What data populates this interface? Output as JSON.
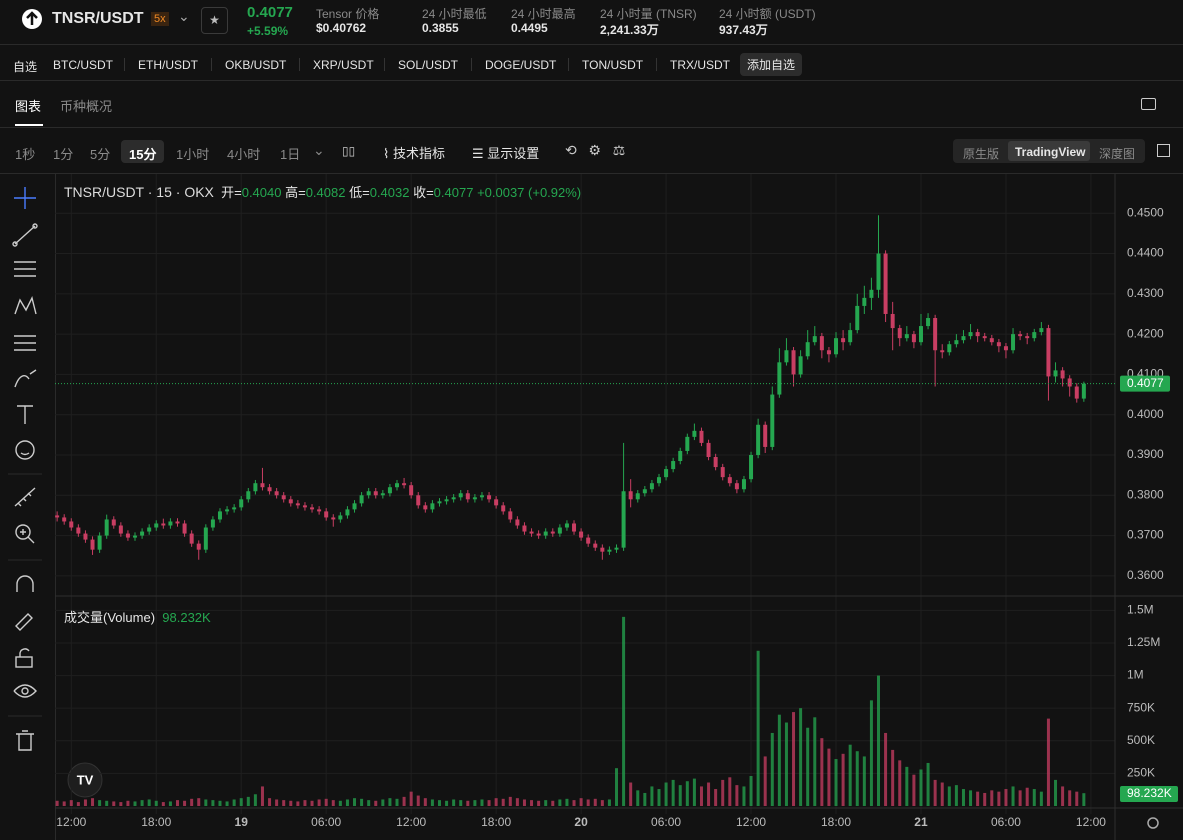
{
  "header": {
    "pair": "TNSR/USDT",
    "leverage": "5x",
    "price": "0.4077",
    "change": "+5.59%",
    "stats": [
      {
        "label": "Tensor 价格",
        "value": "$0.40762"
      },
      {
        "label": "24 小时最低",
        "value": "0.3855"
      },
      {
        "label": "24 小时最高",
        "value": "0.4495"
      },
      {
        "label": "24 小时量 (TNSR)",
        "value": "2,241.33万"
      },
      {
        "label": "24 小时额 (USDT)",
        "value": "937.43万"
      }
    ]
  },
  "watchlist": {
    "label": "自选",
    "pairs": [
      "BTC/USDT",
      "ETH/USDT",
      "OKB/USDT",
      "XRP/USDT",
      "SOL/USDT",
      "DOGE/USDT",
      "TON/USDT",
      "TRX/USDT"
    ],
    "add": "添加自选"
  },
  "tabs": [
    "图表",
    "币种概况"
  ],
  "intervals": [
    "1秒",
    "1分",
    "5分",
    "15分",
    "1小时",
    "4小时",
    "1日"
  ],
  "tools": [
    "技术指标",
    "显示设置"
  ],
  "views": [
    "原生版",
    "TradingView",
    "深度图"
  ],
  "chart_data": {
    "type": "candlestick",
    "grid": true,
    "up_color": "#25a750",
    "down_color": "#c93e63",
    "legend": {
      "title": "TNSR/USDT · 15 · OKX",
      "items": [
        {
          "label": "开=",
          "value": "0.4040"
        },
        {
          "label": "高=",
          "value": "0.4082"
        },
        {
          "label": "低=",
          "value": "0.4032"
        },
        {
          "label": "收=",
          "value": "0.4077"
        }
      ],
      "change": "+0.0037 (+0.92%)"
    },
    "xlim": [
      -0.3,
      149.4
    ],
    "xticks": [
      {
        "value": 2,
        "label": "12:00"
      },
      {
        "value": 14,
        "label": "18:00"
      },
      {
        "value": 26,
        "label": "19"
      },
      {
        "value": 38,
        "label": "06:00"
      },
      {
        "value": 50,
        "label": "12:00"
      },
      {
        "value": 62,
        "label": "18:00"
      },
      {
        "value": 74,
        "label": "20"
      },
      {
        "value": 86,
        "label": "06:00"
      },
      {
        "value": 98,
        "label": "12:00"
      },
      {
        "value": 110,
        "label": "18:00"
      },
      {
        "value": 122,
        "label": "21"
      },
      {
        "value": 134,
        "label": "06:00"
      },
      {
        "value": 146,
        "label": "12:00"
      }
    ],
    "ylim": [
      0.355,
      0.459
    ],
    "yticks": [
      {
        "value": 0.36,
        "label": "0.3600"
      },
      {
        "value": 0.37,
        "label": "0.3700"
      },
      {
        "value": 0.38,
        "label": "0.3800"
      },
      {
        "value": 0.39,
        "label": "0.3900"
      },
      {
        "value": 0.4,
        "label": "0.4000"
      },
      {
        "value": 0.41,
        "label": "0.4100"
      },
      {
        "value": 0.42,
        "label": "0.4200"
      },
      {
        "value": 0.43,
        "label": "0.4300"
      },
      {
        "value": 0.44,
        "label": "0.4400"
      },
      {
        "value": 0.45,
        "label": "0.4500"
      }
    ],
    "ohlc": [
      [
        0.375,
        0.376,
        0.3735,
        0.3745
      ],
      [
        0.3745,
        0.3753,
        0.3727,
        0.3735
      ],
      [
        0.3735,
        0.3743,
        0.3712,
        0.372
      ],
      [
        0.372,
        0.3728,
        0.3697,
        0.3705
      ],
      [
        0.3705,
        0.3713,
        0.3682,
        0.369
      ],
      [
        0.369,
        0.3698,
        0.3652,
        0.3665
      ],
      [
        0.3665,
        0.3708,
        0.3657,
        0.37
      ],
      [
        0.37,
        0.3752,
        0.3692,
        0.374
      ],
      [
        0.374,
        0.3748,
        0.3717,
        0.3725
      ],
      [
        0.3725,
        0.3733,
        0.3697,
        0.3705
      ],
      [
        0.3705,
        0.3713,
        0.3687,
        0.3695
      ],
      [
        0.3695,
        0.3708,
        0.3687,
        0.37
      ],
      [
        0.37,
        0.3718,
        0.3692,
        0.371
      ],
      [
        0.371,
        0.3728,
        0.3702,
        0.372
      ],
      [
        0.372,
        0.3738,
        0.3712,
        0.373
      ],
      [
        0.373,
        0.3742,
        0.3717,
        0.3725
      ],
      [
        0.3725,
        0.3743,
        0.3717,
        0.3735
      ],
      [
        0.3735,
        0.3743,
        0.3722,
        0.373
      ],
      [
        0.373,
        0.3738,
        0.3697,
        0.3705
      ],
      [
        0.3705,
        0.3713,
        0.3672,
        0.368
      ],
      [
        0.368,
        0.3688,
        0.364,
        0.3665
      ],
      [
        0.3665,
        0.3728,
        0.3657,
        0.372
      ],
      [
        0.372,
        0.3748,
        0.3712,
        0.374
      ],
      [
        0.374,
        0.3768,
        0.3732,
        0.376
      ],
      [
        0.376,
        0.3773,
        0.3752,
        0.3765
      ],
      [
        0.3765,
        0.3778,
        0.3757,
        0.377
      ],
      [
        0.377,
        0.3798,
        0.3762,
        0.379
      ],
      [
        0.379,
        0.3818,
        0.3782,
        0.381
      ],
      [
        0.381,
        0.3838,
        0.3802,
        0.383
      ],
      [
        0.383,
        0.3868,
        0.3812,
        0.382
      ],
      [
        0.382,
        0.3828,
        0.3802,
        0.381
      ],
      [
        0.381,
        0.3818,
        0.3792,
        0.38
      ],
      [
        0.38,
        0.3808,
        0.3782,
        0.379
      ],
      [
        0.379,
        0.3798,
        0.3772,
        0.378
      ],
      [
        0.378,
        0.3788,
        0.3767,
        0.3775
      ],
      [
        0.3775,
        0.3783,
        0.3762,
        0.377
      ],
      [
        0.377,
        0.3778,
        0.3757,
        0.3765
      ],
      [
        0.3765,
        0.3773,
        0.3752,
        0.376
      ],
      [
        0.376,
        0.3768,
        0.3737,
        0.3745
      ],
      [
        0.3745,
        0.3753,
        0.3722,
        0.374
      ],
      [
        0.374,
        0.3758,
        0.3732,
        0.375
      ],
      [
        0.375,
        0.3773,
        0.3742,
        0.3765
      ],
      [
        0.3765,
        0.3788,
        0.3757,
        0.378
      ],
      [
        0.378,
        0.3808,
        0.3772,
        0.38
      ],
      [
        0.38,
        0.3818,
        0.3792,
        0.381
      ],
      [
        0.381,
        0.3818,
        0.3792,
        0.38
      ],
      [
        0.38,
        0.3813,
        0.3792,
        0.3805
      ],
      [
        0.3805,
        0.3828,
        0.3797,
        0.382
      ],
      [
        0.382,
        0.3838,
        0.3812,
        0.383
      ],
      [
        0.383,
        0.3843,
        0.3817,
        0.3825
      ],
      [
        0.3825,
        0.3833,
        0.3792,
        0.38
      ],
      [
        0.38,
        0.3808,
        0.3767,
        0.3775
      ],
      [
        0.3775,
        0.3783,
        0.3757,
        0.3765
      ],
      [
        0.3765,
        0.3788,
        0.3757,
        0.378
      ],
      [
        0.378,
        0.3793,
        0.3772,
        0.3785
      ],
      [
        0.3785,
        0.3798,
        0.3777,
        0.379
      ],
      [
        0.379,
        0.3803,
        0.3782,
        0.3795
      ],
      [
        0.3795,
        0.3813,
        0.3787,
        0.3805
      ],
      [
        0.3805,
        0.3813,
        0.3782,
        0.379
      ],
      [
        0.379,
        0.3803,
        0.3782,
        0.3795
      ],
      [
        0.3795,
        0.3808,
        0.3787,
        0.38
      ],
      [
        0.38,
        0.3808,
        0.3782,
        0.379
      ],
      [
        0.379,
        0.3798,
        0.3767,
        0.3775
      ],
      [
        0.3775,
        0.3783,
        0.3752,
        0.376
      ],
      [
        0.376,
        0.3768,
        0.3732,
        0.374
      ],
      [
        0.374,
        0.3748,
        0.3717,
        0.3725
      ],
      [
        0.3725,
        0.3733,
        0.3702,
        0.371
      ],
      [
        0.371,
        0.3718,
        0.3697,
        0.3705
      ],
      [
        0.3705,
        0.3713,
        0.3692,
        0.37
      ],
      [
        0.37,
        0.3718,
        0.3692,
        0.371
      ],
      [
        0.371,
        0.3718,
        0.3697,
        0.3705
      ],
      [
        0.3705,
        0.3728,
        0.3697,
        0.372
      ],
      [
        0.372,
        0.3738,
        0.3712,
        0.373
      ],
      [
        0.373,
        0.3738,
        0.3702,
        0.371
      ],
      [
        0.371,
        0.3718,
        0.3687,
        0.3695
      ],
      [
        0.3695,
        0.3703,
        0.3672,
        0.368
      ],
      [
        0.368,
        0.3688,
        0.3662,
        0.367
      ],
      [
        0.367,
        0.3678,
        0.364,
        0.366
      ],
      [
        0.366,
        0.3673,
        0.3652,
        0.3665
      ],
      [
        0.3665,
        0.3678,
        0.3657,
        0.367
      ],
      [
        0.367,
        0.393,
        0.3662,
        0.381
      ],
      [
        0.381,
        0.384,
        0.377,
        0.379
      ],
      [
        0.379,
        0.3813,
        0.3782,
        0.3805
      ],
      [
        0.3805,
        0.3823,
        0.3797,
        0.3815
      ],
      [
        0.3815,
        0.3838,
        0.3807,
        0.383
      ],
      [
        0.383,
        0.3853,
        0.3822,
        0.3845
      ],
      [
        0.3845,
        0.3873,
        0.3837,
        0.3865
      ],
      [
        0.3865,
        0.3893,
        0.3857,
        0.3885
      ],
      [
        0.3885,
        0.3918,
        0.3877,
        0.391
      ],
      [
        0.391,
        0.3953,
        0.3902,
        0.3945
      ],
      [
        0.3945,
        0.3978,
        0.3937,
        0.396
      ],
      [
        0.396,
        0.3968,
        0.3922,
        0.393
      ],
      [
        0.393,
        0.3938,
        0.3887,
        0.3895
      ],
      [
        0.3895,
        0.3903,
        0.3862,
        0.387
      ],
      [
        0.387,
        0.3878,
        0.3837,
        0.3845
      ],
      [
        0.3845,
        0.3853,
        0.3822,
        0.383
      ],
      [
        0.383,
        0.3838,
        0.3805,
        0.3815
      ],
      [
        0.3815,
        0.3848,
        0.3807,
        0.384
      ],
      [
        0.384,
        0.3908,
        0.3832,
        0.39
      ],
      [
        0.39,
        0.399,
        0.3892,
        0.3975
      ],
      [
        0.3975,
        0.3983,
        0.3905,
        0.392
      ],
      [
        0.392,
        0.407,
        0.3912,
        0.405
      ],
      [
        0.405,
        0.4165,
        0.4042,
        0.413
      ],
      [
        0.413,
        0.419,
        0.4122,
        0.416
      ],
      [
        0.416,
        0.4168,
        0.407,
        0.41
      ],
      [
        0.41,
        0.416,
        0.4092,
        0.4145
      ],
      [
        0.4145,
        0.421,
        0.4137,
        0.418
      ],
      [
        0.418,
        0.422,
        0.4172,
        0.4195
      ],
      [
        0.4195,
        0.4203,
        0.414,
        0.416
      ],
      [
        0.416,
        0.4168,
        0.413,
        0.415
      ],
      [
        0.415,
        0.4205,
        0.4142,
        0.419
      ],
      [
        0.419,
        0.421,
        0.416,
        0.418
      ],
      [
        0.418,
        0.4228,
        0.4172,
        0.421
      ],
      [
        0.421,
        0.43,
        0.4202,
        0.427
      ],
      [
        0.427,
        0.432,
        0.425,
        0.429
      ],
      [
        0.429,
        0.434,
        0.426,
        0.431
      ],
      [
        0.431,
        0.4495,
        0.429,
        0.44
      ],
      [
        0.44,
        0.4408,
        0.423,
        0.425
      ],
      [
        0.425,
        0.428,
        0.416,
        0.4215
      ],
      [
        0.4215,
        0.4223,
        0.417,
        0.419
      ],
      [
        0.419,
        0.422,
        0.4182,
        0.42
      ],
      [
        0.42,
        0.4208,
        0.4165,
        0.418
      ],
      [
        0.418,
        0.425,
        0.4172,
        0.422
      ],
      [
        0.422,
        0.4252,
        0.4212,
        0.424
      ],
      [
        0.424,
        0.4248,
        0.407,
        0.416
      ],
      [
        0.416,
        0.4175,
        0.414,
        0.4155
      ],
      [
        0.4155,
        0.4183,
        0.4147,
        0.4175
      ],
      [
        0.4175,
        0.42,
        0.4167,
        0.4185
      ],
      [
        0.4185,
        0.421,
        0.4177,
        0.4195
      ],
      [
        0.4195,
        0.4225,
        0.4187,
        0.4205
      ],
      [
        0.4205,
        0.4213,
        0.418,
        0.4195
      ],
      [
        0.4195,
        0.4203,
        0.4182,
        0.419
      ],
      [
        0.419,
        0.4198,
        0.4172,
        0.418
      ],
      [
        0.418,
        0.4188,
        0.4155,
        0.417
      ],
      [
        0.417,
        0.4178,
        0.414,
        0.416
      ],
      [
        0.416,
        0.4215,
        0.4152,
        0.42
      ],
      [
        0.42,
        0.4208,
        0.4185,
        0.4195
      ],
      [
        0.4195,
        0.4203,
        0.4175,
        0.419
      ],
      [
        0.419,
        0.4213,
        0.4182,
        0.4205
      ],
      [
        0.4205,
        0.423,
        0.4197,
        0.4215
      ],
      [
        0.4215,
        0.4223,
        0.4035,
        0.4095
      ],
      [
        0.4095,
        0.413,
        0.408,
        0.411
      ],
      [
        0.411,
        0.4118,
        0.407,
        0.409
      ],
      [
        0.409,
        0.4098,
        0.4045,
        0.407
      ],
      [
        0.407,
        0.4078,
        0.403,
        0.404
      ],
      [
        0.404,
        0.4082,
        0.4032,
        0.4077
      ]
    ],
    "volume": {
      "title": "成交量(Volume)",
      "vlim": [
        0,
        1610000
      ],
      "vticks": [
        {
          "value": 250000,
          "label": "250K"
        },
        {
          "value": 500000,
          "label": "500K"
        },
        {
          "value": 750000,
          "label": "750K"
        },
        {
          "value": 1000000,
          "label": "1M"
        },
        {
          "value": 1250000,
          "label": "1.25M"
        },
        {
          "value": 1500000,
          "label": "1.5M"
        }
      ],
      "values": [
        40000,
        35000,
        45000,
        30000,
        50000,
        60000,
        45000,
        40000,
        35000,
        30000,
        40000,
        35000,
        45000,
        50000,
        40000,
        30000,
        35000,
        45000,
        40000,
        55000,
        60000,
        50000,
        45000,
        40000,
        35000,
        50000,
        60000,
        70000,
        90000,
        150000,
        60000,
        50000,
        45000,
        40000,
        35000,
        45000,
        40000,
        50000,
        55000,
        45000,
        40000,
        50000,
        60000,
        55000,
        45000,
        40000,
        50000,
        60000,
        55000,
        70000,
        110000,
        80000,
        60000,
        50000,
        45000,
        40000,
        50000,
        45000,
        40000,
        45000,
        50000,
        45000,
        60000,
        55000,
        70000,
        60000,
        50000,
        45000,
        40000,
        45000,
        40000,
        50000,
        55000,
        45000,
        60000,
        50000,
        55000,
        45000,
        50000,
        290000,
        1450000,
        180000,
        120000,
        100000,
        150000,
        130000,
        180000,
        200000,
        160000,
        190000,
        210000,
        150000,
        180000,
        130000,
        200000,
        220000,
        160000,
        150000,
        230000,
        1190000,
        380000,
        560000,
        700000,
        640000,
        720000,
        750000,
        600000,
        680000,
        520000,
        440000,
        360000,
        400000,
        470000,
        420000,
        380000,
        810000,
        1000000,
        560000,
        430000,
        350000,
        300000,
        240000,
        280000,
        330000,
        200000,
        180000,
        150000,
        160000,
        130000,
        120000,
        110000,
        100000,
        120000,
        110000,
        130000,
        150000,
        120000,
        140000,
        130000,
        110000,
        670000,
        200000,
        150000,
        120000,
        110000,
        98232
      ],
      "value_labels": [
        null,
        null,
        null,
        null,
        null,
        null,
        null,
        null,
        null,
        null,
        null,
        null,
        null,
        null,
        null,
        null,
        null,
        null,
        null,
        null,
        null,
        null,
        null,
        null,
        null,
        null,
        null,
        null,
        null,
        null,
        null,
        null,
        null,
        null,
        null,
        null,
        null,
        null,
        null,
        null,
        null,
        null,
        null,
        null,
        null,
        null,
        null,
        null,
        null,
        null,
        null,
        null,
        null,
        null,
        null,
        null,
        null,
        null,
        null,
        null,
        null,
        null,
        null,
        null,
        null,
        null,
        null,
        null,
        null,
        null,
        null,
        null,
        null,
        null,
        null,
        null,
        null,
        null,
        null,
        null,
        null,
        null,
        null,
        null,
        null,
        null,
        null,
        null,
        null,
        null,
        null,
        null,
        null,
        null,
        null,
        null,
        null,
        null,
        null,
        null,
        null,
        null,
        null,
        null,
        null,
        null,
        null,
        null,
        null,
        null,
        null,
        null,
        null,
        null,
        null,
        null,
        null,
        null,
        null,
        null,
        null,
        null,
        null,
        null,
        null,
        null,
        null,
        null,
        null,
        null,
        null,
        null,
        null,
        null,
        null,
        null,
        null,
        null,
        null,
        null,
        null,
        null,
        null,
        null,
        null,
        "98.232K"
      ]
    }
  }
}
